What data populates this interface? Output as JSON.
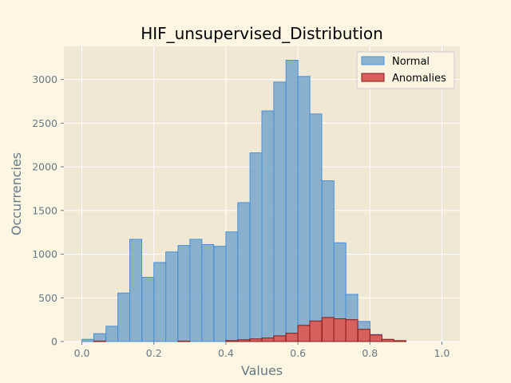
{
  "chart_data": {
    "type": "bar",
    "title": "HIF_unsupervised_Distribution",
    "xlabel": "Values",
    "ylabel": "Occurrencies",
    "xlim": [
      -0.05,
      1.05
    ],
    "ylim": [
      0,
      3380
    ],
    "xticks": [
      "0.0",
      "0.2",
      "0.4",
      "0.6",
      "0.8",
      "1.0"
    ],
    "xtick_values": [
      0.0,
      0.2,
      0.4,
      0.6,
      0.8,
      1.0
    ],
    "yticks": [
      "0",
      "500",
      "1000",
      "1500",
      "2000",
      "2500",
      "3000"
    ],
    "ytick_values": [
      0,
      500,
      1000,
      1500,
      2000,
      2500,
      3000
    ],
    "grid": true,
    "legend_position": "top-right",
    "bin_width": 0.0333,
    "series": [
      {
        "name": "Normal",
        "color": "#6fa3cc",
        "edge_color": "#4a90d9",
        "bins": [
          {
            "x": 0.0,
            "count": 25
          },
          {
            "x": 0.033,
            "count": 90
          },
          {
            "x": 0.067,
            "count": 175
          },
          {
            "x": 0.1,
            "count": 555
          },
          {
            "x": 0.133,
            "count": 1170
          },
          {
            "x": 0.167,
            "count": 735
          },
          {
            "x": 0.2,
            "count": 905
          },
          {
            "x": 0.233,
            "count": 1025
          },
          {
            "x": 0.267,
            "count": 1100
          },
          {
            "x": 0.3,
            "count": 1170
          },
          {
            "x": 0.333,
            "count": 1110
          },
          {
            "x": 0.367,
            "count": 1090
          },
          {
            "x": 0.4,
            "count": 1255
          },
          {
            "x": 0.433,
            "count": 1590
          },
          {
            "x": 0.467,
            "count": 2160
          },
          {
            "x": 0.5,
            "count": 2640
          },
          {
            "x": 0.533,
            "count": 2970
          },
          {
            "x": 0.567,
            "count": 3220
          },
          {
            "x": 0.6,
            "count": 3035
          },
          {
            "x": 0.633,
            "count": 2605
          },
          {
            "x": 0.667,
            "count": 1840
          },
          {
            "x": 0.7,
            "count": 1130
          },
          {
            "x": 0.733,
            "count": 540
          },
          {
            "x": 0.767,
            "count": 230
          },
          {
            "x": 0.8,
            "count": 80
          },
          {
            "x": 0.833,
            "count": 20
          },
          {
            "x": 0.867,
            "count": 5
          }
        ]
      },
      {
        "name": "Anomalies",
        "color": "#d6605c",
        "edge_color": "#8b1a1a",
        "bins": [
          {
            "x": 0.033,
            "count": 5
          },
          {
            "x": 0.267,
            "count": 5
          },
          {
            "x": 0.4,
            "count": 10
          },
          {
            "x": 0.433,
            "count": 20
          },
          {
            "x": 0.467,
            "count": 30
          },
          {
            "x": 0.5,
            "count": 40
          },
          {
            "x": 0.533,
            "count": 65
          },
          {
            "x": 0.567,
            "count": 95
          },
          {
            "x": 0.6,
            "count": 185
          },
          {
            "x": 0.633,
            "count": 235
          },
          {
            "x": 0.667,
            "count": 275
          },
          {
            "x": 0.7,
            "count": 260
          },
          {
            "x": 0.733,
            "count": 250
          },
          {
            "x": 0.767,
            "count": 140
          },
          {
            "x": 0.8,
            "count": 75
          },
          {
            "x": 0.833,
            "count": 25
          },
          {
            "x": 0.867,
            "count": 10
          }
        ]
      }
    ]
  }
}
